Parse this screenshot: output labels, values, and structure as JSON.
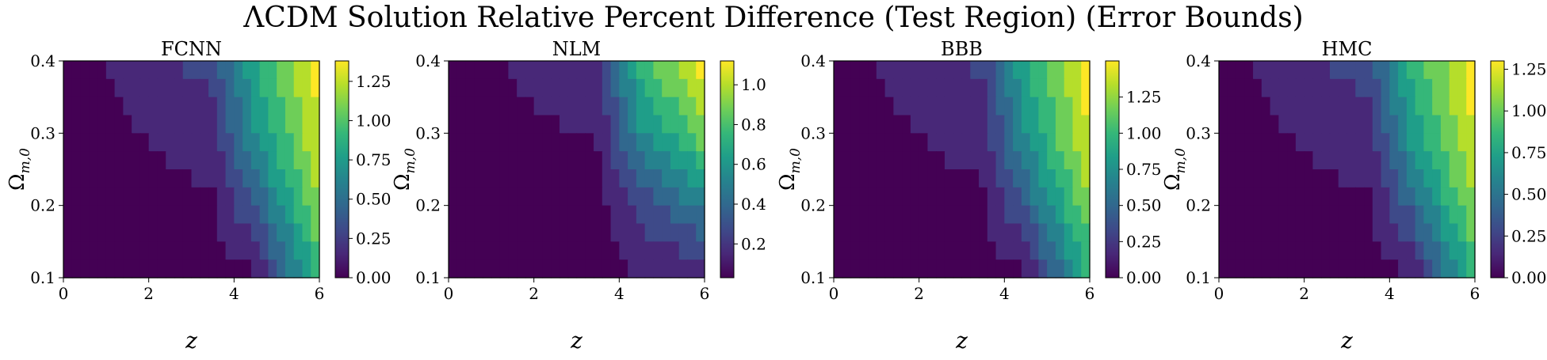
{
  "figure": {
    "title": "ΛCDM Solution Relative Percent Difference (Test Region) (Error Bounds)"
  },
  "chart_data": [
    {
      "type": "heatmap",
      "title": "FCNN",
      "xlabel": "z",
      "ylabel": "Ω_{m,0}",
      "xlim": [
        0,
        6
      ],
      "ylim": [
        0.1,
        0.4
      ],
      "xticks": [
        "0",
        "2",
        "4",
        "6"
      ],
      "yticks": [
        "0.1",
        "0.2",
        "0.3",
        "0.4"
      ],
      "colormap": "viridis",
      "colorbar_range": [
        0,
        1.38
      ],
      "colorbar_ticks": [
        "0.00",
        "0.25",
        "0.50",
        "0.75",
        "1.00",
        "1.25"
      ],
      "approx_values": [
        {
          "z": 0,
          "values": [
            0,
            0,
            0,
            0
          ]
        },
        {
          "z": 3.5,
          "values": [
            0,
            0.05,
            0.15,
            0.3
          ]
        },
        {
          "z": 4.5,
          "values": [
            0.05,
            0.4,
            0.7,
            0.85
          ]
        },
        {
          "z": 6,
          "values": [
            0.9,
            1.15,
            1.3,
            1.38
          ]
        }
      ]
    },
    {
      "type": "heatmap",
      "title": "NLM",
      "xlabel": "z",
      "ylabel": "Ω_{m,0}",
      "xlim": [
        0,
        6
      ],
      "ylim": [
        0.1,
        0.4
      ],
      "xticks": [
        "0",
        "2",
        "4",
        "6"
      ],
      "yticks": [
        "0.1",
        "0.2",
        "0.3",
        "0.4"
      ],
      "colormap": "viridis",
      "colorbar_range": [
        0.03,
        1.12
      ],
      "colorbar_ticks": [
        "0.2",
        "0.4",
        "0.6",
        "0.8",
        "1.0"
      ],
      "approx_values": [
        {
          "z": 0,
          "values": [
            0.03,
            0.03,
            0.03,
            0.03
          ]
        },
        {
          "z": 3.5,
          "values": [
            0.03,
            0.05,
            0.1,
            0.2
          ]
        },
        {
          "z": 4.5,
          "values": [
            0.1,
            0.25,
            0.55,
            0.75
          ]
        },
        {
          "z": 6,
          "values": [
            0.1,
            0.5,
            0.9,
            1.12
          ]
        }
      ]
    },
    {
      "type": "heatmap",
      "title": "BBB",
      "xlabel": "z",
      "ylabel": "Ω_{m,0}",
      "xlim": [
        0,
        6
      ],
      "ylim": [
        0.1,
        0.4
      ],
      "xticks": [
        "0",
        "2",
        "4",
        "6"
      ],
      "yticks": [
        "0.1",
        "0.2",
        "0.3",
        "0.4"
      ],
      "colormap": "viridis",
      "colorbar_range": [
        0,
        1.5
      ],
      "colorbar_ticks": [
        "0.00",
        "0.25",
        "0.50",
        "0.75",
        "1.00",
        "1.25"
      ],
      "approx_values": [
        {
          "z": 0,
          "values": [
            0,
            0,
            0,
            0
          ]
        },
        {
          "z": 3.5,
          "values": [
            0,
            0.05,
            0.15,
            0.3
          ]
        },
        {
          "z": 4.5,
          "values": [
            0.05,
            0.45,
            0.75,
            0.9
          ]
        },
        {
          "z": 6,
          "values": [
            0.95,
            1.25,
            1.45,
            1.5
          ]
        }
      ]
    },
    {
      "type": "heatmap",
      "title": "HMC",
      "xlabel": "z",
      "ylabel": "Ω_{m,0}",
      "xlim": [
        0,
        6
      ],
      "ylim": [
        0.1,
        0.4
      ],
      "xticks": [
        "0",
        "2",
        "4",
        "6"
      ],
      "yticks": [
        "0.1",
        "0.2",
        "0.3",
        "0.4"
      ],
      "colormap": "viridis",
      "colorbar_range": [
        0,
        1.3
      ],
      "colorbar_ticks": [
        "0.00",
        "0.25",
        "0.50",
        "0.75",
        "1.00",
        "1.25"
      ],
      "approx_values": [
        {
          "z": 0,
          "values": [
            0,
            0,
            0,
            0
          ]
        },
        {
          "z": 3.5,
          "values": [
            0,
            0.05,
            0.15,
            0.3
          ]
        },
        {
          "z": 4.5,
          "values": [
            0.05,
            0.4,
            0.7,
            0.85
          ]
        },
        {
          "z": 6,
          "values": [
            0.85,
            1.1,
            1.25,
            1.3
          ]
        }
      ]
    }
  ]
}
